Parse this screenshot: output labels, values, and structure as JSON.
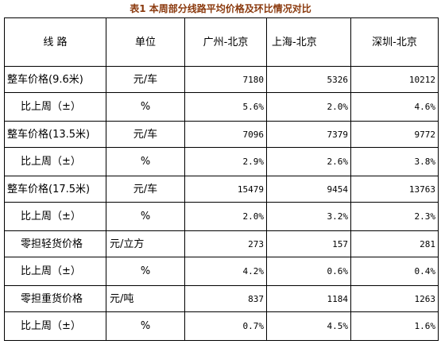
{
  "title": "表1 本周部分线路平均价格及环比情况对比",
  "headers": [
    "线 路",
    "单位",
    "广州-北京",
    "上海-北京",
    "深圳-北京"
  ],
  "rows": [
    {
      "label": "整车价格(9.6米)",
      "unit": "元/车",
      "values": [
        "7180",
        "5326",
        "10212"
      ]
    },
    {
      "label": "比上周（±）",
      "unit": "%",
      "values": [
        "5.6%",
        "2.0%",
        "4.6%"
      ]
    },
    {
      "label": "整车价格(13.5米)",
      "unit": "元/车",
      "values": [
        "7096",
        "7379",
        "9772"
      ]
    },
    {
      "label": "比上周（±）",
      "unit": "%",
      "values": [
        "2.9%",
        "2.6%",
        "3.8%"
      ]
    },
    {
      "label": "整车价格(17.5米)",
      "unit": "元/车",
      "values": [
        "15479",
        "9454",
        "13763"
      ]
    },
    {
      "label": "比上周（±）",
      "unit": "%",
      "values": [
        "2.0%",
        "3.2%",
        "2.3%"
      ]
    },
    {
      "label": "零担轻货价格",
      "unit": "元/立方",
      "values": [
        "273",
        "157",
        "281"
      ]
    },
    {
      "label": "比上周（±）",
      "unit": "%",
      "values": [
        "4.2%",
        "0.6%",
        "0.4%"
      ]
    },
    {
      "label": "零担重货价格",
      "unit": "元/吨",
      "values": [
        "837",
        "1184",
        "1263"
      ]
    },
    {
      "label": "比上周（±）",
      "unit": "%",
      "values": [
        "0.7%",
        "4.5%",
        "1.6%"
      ]
    }
  ]
}
